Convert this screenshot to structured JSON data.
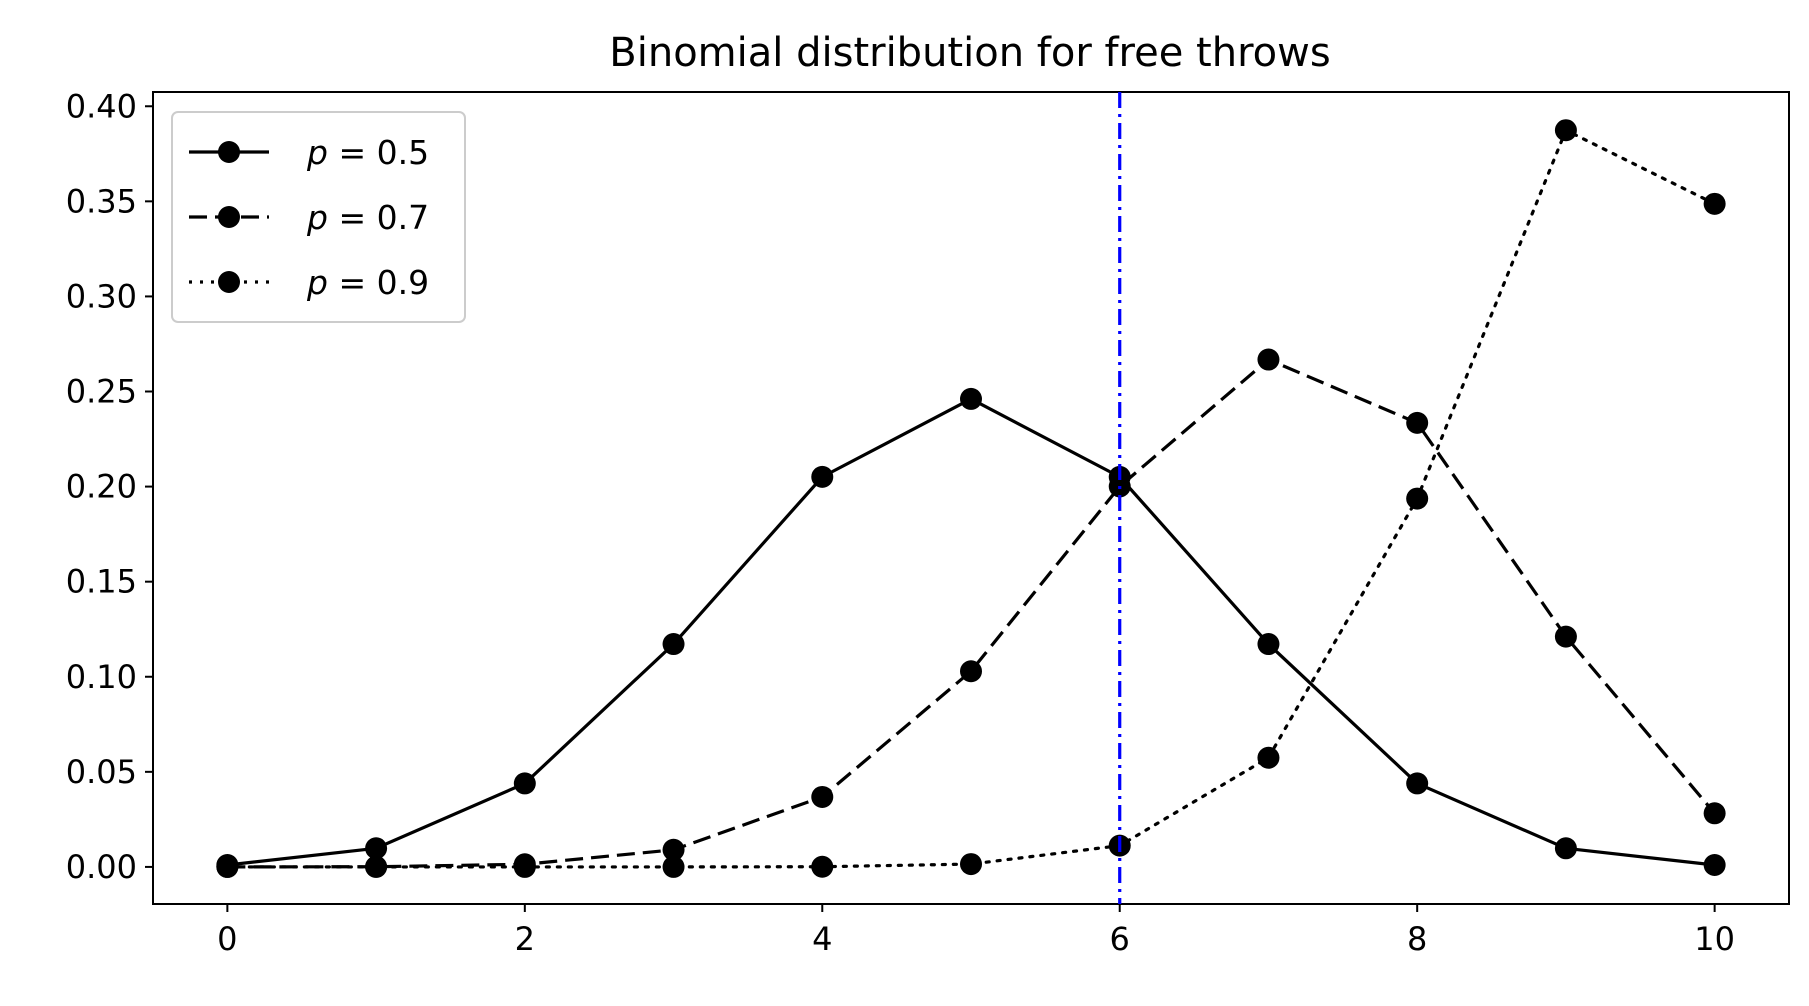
{
  "chart_data": {
    "type": "line",
    "title": "Binomial distribution for free throws",
    "xlabel": "",
    "ylabel": "",
    "xlim": [
      -0.5,
      10.5
    ],
    "ylim": [
      -0.0195,
      0.4075
    ],
    "x_ticks": [
      0,
      2,
      4,
      6,
      8,
      10
    ],
    "x_tick_labels": [
      "0",
      "2",
      "4",
      "6",
      "8",
      "10"
    ],
    "y_ticks": [
      0.0,
      0.05,
      0.1,
      0.15,
      0.2,
      0.25,
      0.3,
      0.35,
      0.4
    ],
    "y_tick_labels": [
      "0.00",
      "0.05",
      "0.10",
      "0.15",
      "0.20",
      "0.25",
      "0.30",
      "0.35",
      "0.40"
    ],
    "grid": false,
    "legend_position": "top-left",
    "x": [
      0,
      1,
      2,
      3,
      4,
      5,
      6,
      7,
      8,
      9,
      10
    ],
    "series": [
      {
        "name": "p = 0.5",
        "legend_var": "p",
        "legend_eq": " = 0.5",
        "line_style": "solid",
        "marker": "circle",
        "color": "#000000",
        "values": [
          0.001,
          0.0098,
          0.0439,
          0.1172,
          0.2051,
          0.2461,
          0.2051,
          0.1172,
          0.0439,
          0.0098,
          0.001
        ]
      },
      {
        "name": "p = 0.7",
        "legend_var": "p",
        "legend_eq": " = 0.7",
        "line_style": "dashed",
        "marker": "circle",
        "color": "#000000",
        "values": [
          0.0,
          0.0001,
          0.0014,
          0.009,
          0.0368,
          0.1029,
          0.2001,
          0.2668,
          0.2335,
          0.1211,
          0.0282
        ]
      },
      {
        "name": "p = 0.9",
        "legend_var": "p",
        "legend_eq": " = 0.9",
        "line_style": "dotted",
        "marker": "circle",
        "color": "#000000",
        "values": [
          0.0,
          0.0,
          0.0,
          0.0,
          0.0001,
          0.0015,
          0.0112,
          0.0574,
          0.1937,
          0.3874,
          0.3487
        ]
      }
    ],
    "reference_lines": [
      {
        "orientation": "vertical",
        "x": 6,
        "line_style": "dashdot",
        "color": "#0000ff"
      }
    ]
  }
}
